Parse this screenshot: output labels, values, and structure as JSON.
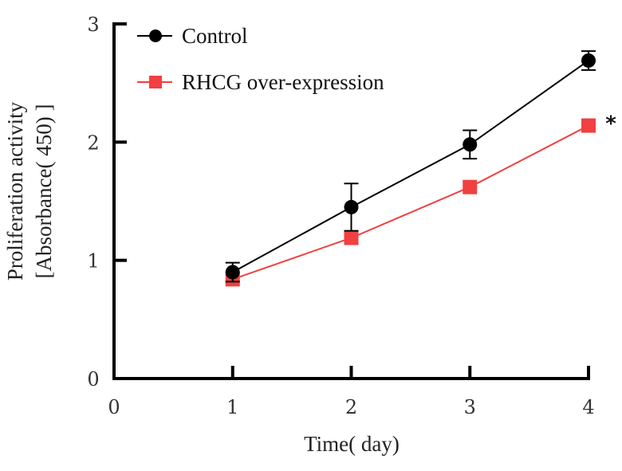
{
  "chart_data": {
    "type": "line",
    "title": "",
    "xlabel": "Time( day)",
    "ylabel_lines": [
      "Proliferation activity",
      "[Absorbance( 450) ]"
    ],
    "xlim": [
      0,
      4
    ],
    "ylim": [
      0,
      3
    ],
    "x_ticks": [
      0,
      1,
      2,
      3,
      4
    ],
    "x_tick_labels": [
      "0",
      "1",
      "2",
      "3",
      "4"
    ],
    "y_ticks": [
      0,
      1,
      2,
      3
    ],
    "y_tick_labels": [
      "0",
      "1",
      "2",
      "3"
    ],
    "grid": false,
    "legend_position": "top-left",
    "x": [
      1,
      2,
      3,
      4
    ],
    "series": [
      {
        "name": "Control",
        "color": "#000000",
        "marker": "circle",
        "values": [
          0.9,
          1.45,
          1.98,
          2.69
        ],
        "errors": [
          0.08,
          0.2,
          0.12,
          0.08
        ]
      },
      {
        "name": "RHCG over-expression",
        "color": "#f04040",
        "marker": "square",
        "values": [
          0.84,
          1.19,
          1.62,
          2.14
        ],
        "errors": [
          0,
          0,
          0,
          0
        ]
      }
    ],
    "annotations": [
      {
        "text": "*",
        "x": 4,
        "series": "RHCG over-expression"
      }
    ]
  }
}
